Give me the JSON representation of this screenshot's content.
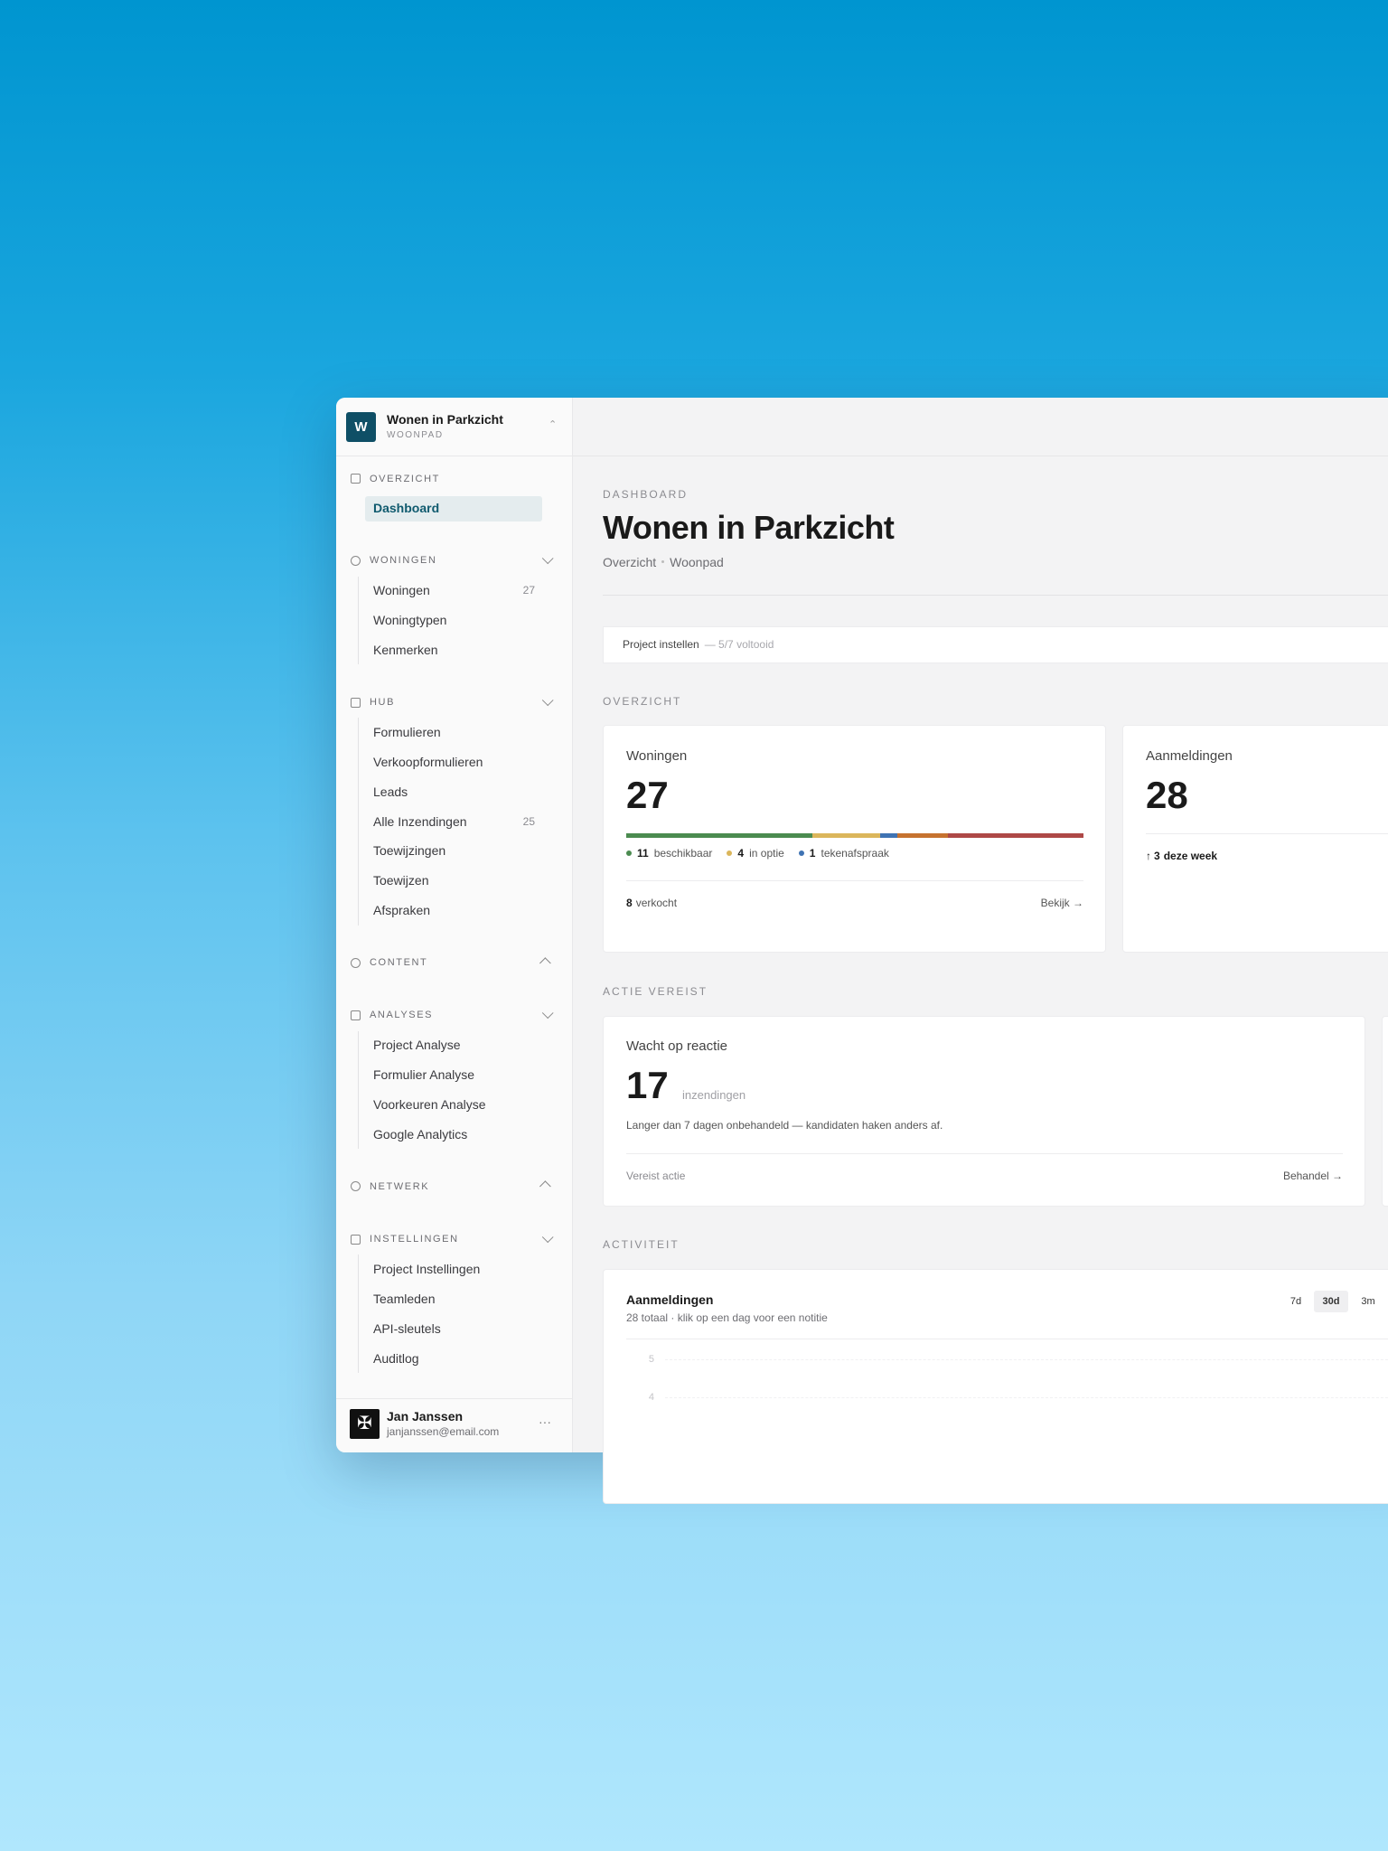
{
  "sidebar": {
    "workspace": {
      "initial": "W",
      "name": "Wonen in Parkzicht",
      "subtitle": "WOONPAD"
    },
    "sections": [
      {
        "title": "OVERZICHT",
        "collapsible": false,
        "expanded": true,
        "items": [
          {
            "label": "Dashboard",
            "active": true
          }
        ]
      },
      {
        "title": "WONINGEN",
        "collapsible": true,
        "expanded": true,
        "items": [
          {
            "label": "Woningen",
            "count": 27
          },
          {
            "label": "Woningtypen"
          },
          {
            "label": "Kenmerken"
          }
        ]
      },
      {
        "title": "HUB",
        "collapsible": true,
        "expanded": true,
        "items": [
          {
            "label": "Formulieren"
          },
          {
            "label": "Verkoopformulieren"
          },
          {
            "label": "Leads"
          },
          {
            "label": "Alle Inzendingen",
            "count": 25
          },
          {
            "label": "Toewijzingen"
          },
          {
            "label": "Toewijzen"
          },
          {
            "label": "Afspraken"
          }
        ]
      },
      {
        "title": "CONTENT",
        "collapsible": true,
        "expanded": false,
        "items": []
      },
      {
        "title": "ANALYSES",
        "collapsible": true,
        "expanded": true,
        "items": [
          {
            "label": "Project Analyse"
          },
          {
            "label": "Formulier Analyse"
          },
          {
            "label": "Voorkeuren Analyse"
          },
          {
            "label": "Google Analytics"
          }
        ]
      },
      {
        "title": "NETWERK",
        "collapsible": true,
        "expanded": false,
        "items": []
      },
      {
        "title": "INSTELLINGEN",
        "collapsible": true,
        "expanded": true,
        "items": [
          {
            "label": "Project Instellingen"
          },
          {
            "label": "Teamleden"
          },
          {
            "label": "API-sleutels"
          },
          {
            "label": "Auditlog"
          }
        ]
      }
    ],
    "user": {
      "name": "Jan Janssen",
      "email": "janjanssen@email.com"
    }
  },
  "main": {
    "eyebrow": "DASHBOARD",
    "title": "Wonen in Parkzicht",
    "breadcrumbs": [
      "Overzicht",
      "Woonpad"
    ],
    "setup": {
      "label": "Project instellen",
      "progress": "— 5/7 voltooid"
    },
    "overview": {
      "heading": "OVERZICHT",
      "woningen": {
        "title": "Woningen",
        "total": 27,
        "segments": [
          {
            "label": "beschikbaar",
            "value": 11,
            "color": "#4b8b50"
          },
          {
            "label": "in optie",
            "value": 4,
            "color": "#dbb65b"
          },
          {
            "label": "tekenafspraak",
            "value": 1,
            "color": "#3f73b3"
          },
          {
            "value": 3,
            "color": "#c6722f"
          },
          {
            "label": "verkocht",
            "value": 8,
            "color": "#ae4846"
          }
        ],
        "footer_segment": 4,
        "link": "Bekijk →"
      },
      "aanmeldingen": {
        "title": "Aanmeldingen",
        "total": 28,
        "delta": {
          "arrow": "↑",
          "value": 3,
          "label": "deze week"
        }
      }
    },
    "action": {
      "heading": "ACTIE VEREIST",
      "card": {
        "title": "Wacht op reactie",
        "value": 17,
        "unit": "inzendingen",
        "description": "Langer dan 7 dagen onbehandeld — kandidaten haken anders af.",
        "status": "Vereist actie",
        "link": "Behandel →"
      }
    },
    "activity": {
      "heading": "ACTIVITEIT",
      "chart": {
        "title": "Aanmeldingen",
        "subtitle": "28 totaal · klik op een dag voor een notitie",
        "ranges": [
          "7d",
          "30d",
          "3m"
        ],
        "active_range": 1,
        "yticks": [
          5,
          4
        ]
      }
    }
  }
}
